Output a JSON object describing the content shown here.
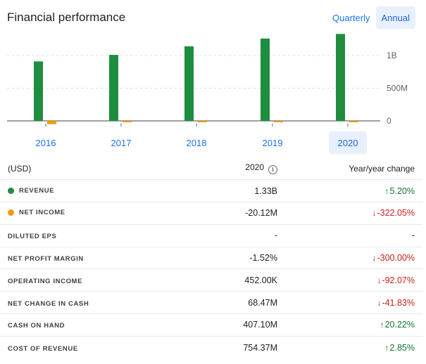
{
  "header": {
    "title": "Financial performance",
    "toggles": [
      {
        "label": "Quarterly",
        "active": false
      },
      {
        "label": "Annual",
        "active": true
      }
    ]
  },
  "chart_data": {
    "type": "bar",
    "categories": [
      "2016",
      "2017",
      "2018",
      "2019",
      "2020"
    ],
    "series": [
      {
        "name": "Revenue",
        "color": "#1e8e3e",
        "values": [
          0.91,
          1.01,
          1.14,
          1.26,
          1.33
        ]
      },
      {
        "name": "Net income",
        "color": "#f29900",
        "values": [
          -0.05,
          -0.01,
          -0.01,
          -0.005,
          -0.02012
        ]
      }
    ],
    "ylim": [
      -0.05,
      1.35
    ],
    "yticks": [
      {
        "value": 1.0,
        "label": "1B"
      },
      {
        "value": 0.5,
        "label": "500M"
      },
      {
        "value": 0,
        "label": "0"
      }
    ],
    "grid": true,
    "selected_category": "2020"
  },
  "table": {
    "headers": {
      "label": "(USD)",
      "year": "2020",
      "change": "Year/year change"
    },
    "rows": [
      {
        "label": "REVENUE",
        "dot": "#1e8e3e",
        "value": "1.33B",
        "change": "5.20%",
        "dir": "up"
      },
      {
        "label": "NET INCOME",
        "dot": "#f29900",
        "value": "-20.12M",
        "change": "-322.05%",
        "dir": "down"
      },
      {
        "label": "DILUTED EPS",
        "value": "-",
        "change": "-",
        "dir": "none"
      },
      {
        "label": "NET PROFIT MARGIN",
        "value": "-1.52%",
        "change": "-300.00%",
        "dir": "down"
      },
      {
        "label": "OPERATING INCOME",
        "value": "452.00K",
        "change": "-92.07%",
        "dir": "down"
      },
      {
        "label": "NET CHANGE IN CASH",
        "value": "68.47M",
        "change": "-41.83%",
        "dir": "down"
      },
      {
        "label": "CASH ON HAND",
        "value": "407.10M",
        "change": "20.22%",
        "dir": "up"
      },
      {
        "label": "COST OF REVENUE",
        "value": "754.37M",
        "change": "2.85%",
        "dir": "up"
      }
    ]
  }
}
